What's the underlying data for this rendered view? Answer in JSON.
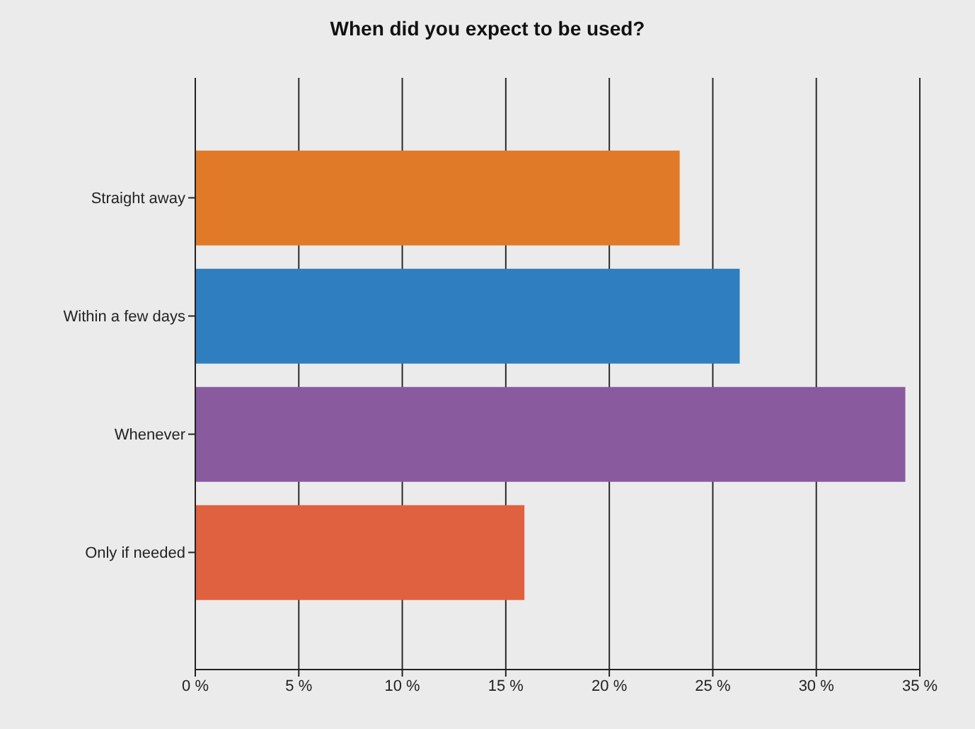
{
  "chart_data": {
    "type": "bar",
    "orientation": "horizontal",
    "title": "When did you expect to be used?",
    "categories": [
      "Straight away",
      "Within a few days",
      "Whenever",
      "Only if needed"
    ],
    "values": [
      23.4,
      26.3,
      34.3,
      15.9
    ],
    "colors": [
      "#e07a28",
      "#2f7fc0",
      "#8a5a9f",
      "#e0613f"
    ],
    "xlim": [
      0,
      35
    ],
    "xticks": [
      {
        "value": 0,
        "label": "0 %"
      },
      {
        "value": 5,
        "label": "5 %"
      },
      {
        "value": 10,
        "label": "10 %"
      },
      {
        "value": 15,
        "label": "15 %"
      },
      {
        "value": 20,
        "label": "20 %"
      },
      {
        "value": 25,
        "label": "25 %"
      },
      {
        "value": 30,
        "label": "30 %"
      },
      {
        "value": 35,
        "label": "35 %"
      }
    ],
    "grid": "x"
  }
}
